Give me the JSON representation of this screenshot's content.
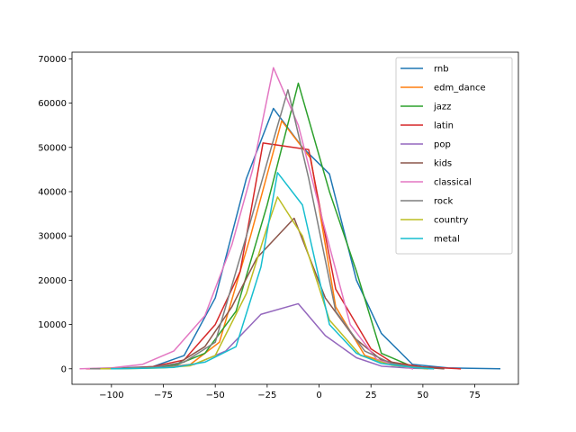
{
  "chart_data": {
    "type": "line",
    "title": "",
    "xlabel": "",
    "ylabel": "",
    "xlim": [
      -119,
      96
    ],
    "ylim": [
      -3500,
      71500
    ],
    "x_ticks": [
      -100,
      -75,
      -50,
      -25,
      0,
      25,
      50,
      75
    ],
    "x_tick_labels": [
      "−100",
      "−75",
      "−50",
      "−25",
      "0",
      "25",
      "50",
      "75"
    ],
    "y_ticks": [
      0,
      10000,
      20000,
      30000,
      40000,
      50000,
      60000,
      70000
    ],
    "y_tick_labels": [
      "0",
      "10000",
      "20000",
      "30000",
      "40000",
      "50000",
      "60000",
      "70000"
    ],
    "grid": false,
    "legend_position": "top-right",
    "series": [
      {
        "name": "rnb",
        "color": "#1f77b4",
        "x": [
          -110,
          -95,
          -80,
          -65,
          -50,
          -35,
          -22,
          -8,
          5,
          18,
          30,
          45,
          62,
          87
        ],
        "y": [
          0,
          200,
          500,
          3000,
          16000,
          43000,
          58800,
          50000,
          44000,
          20000,
          8000,
          1000,
          200,
          0
        ]
      },
      {
        "name": "edm_dance",
        "color": "#ff7f0e",
        "x": [
          -105,
          -90,
          -75,
          -62,
          -48,
          -33,
          -18,
          -4,
          8,
          22,
          35,
          52
        ],
        "y": [
          0,
          100,
          300,
          1000,
          6000,
          30000,
          56000,
          47500,
          14000,
          3000,
          1000,
          0
        ]
      },
      {
        "name": "jazz",
        "color": "#2ca02c",
        "x": [
          -108,
          -95,
          -80,
          -68,
          -55,
          -40,
          -25,
          -10,
          5,
          18,
          30,
          45,
          55
        ],
        "y": [
          0,
          100,
          200,
          1000,
          3500,
          13000,
          37000,
          64500,
          40000,
          22000,
          3500,
          500,
          0
        ]
      },
      {
        "name": "latin",
        "color": "#d62728",
        "x": [
          -112,
          -95,
          -80,
          -65,
          -50,
          -38,
          -27,
          -5,
          8,
          25,
          35,
          50,
          68
        ],
        "y": [
          0,
          100,
          500,
          2000,
          10000,
          22000,
          51000,
          49500,
          18000,
          4500,
          1500,
          400,
          0
        ]
      },
      {
        "name": "pop",
        "color": "#9467bd",
        "x": [
          -105,
          -90,
          -75,
          -60,
          -45,
          -28,
          -10,
          3,
          18,
          30,
          45,
          55
        ],
        "y": [
          0,
          100,
          300,
          1000,
          4000,
          12300,
          14700,
          7500,
          2500,
          600,
          100,
          0
        ]
      },
      {
        "name": "kids",
        "color": "#8c564b",
        "x": [
          -110,
          -95,
          -80,
          -68,
          -55,
          -42,
          -30,
          -12,
          3,
          17,
          30,
          45,
          60
        ],
        "y": [
          0,
          100,
          400,
          1200,
          5000,
          14000,
          25000,
          34000,
          16000,
          7000,
          2000,
          500,
          0
        ]
      },
      {
        "name": "classical",
        "color": "#e377c2",
        "x": [
          -115,
          -100,
          -85,
          -70,
          -55,
          -42,
          -32,
          -22,
          -10,
          2,
          15,
          28,
          45
        ],
        "y": [
          0,
          200,
          1000,
          4000,
          12000,
          28000,
          45000,
          68000,
          55000,
          33000,
          10000,
          2000,
          0
        ]
      },
      {
        "name": "rock",
        "color": "#7f7f7f",
        "x": [
          -110,
          -95,
          -80,
          -65,
          -50,
          -35,
          -23,
          -15,
          -5,
          8,
          22,
          35,
          52
        ],
        "y": [
          0,
          100,
          300,
          1500,
          6000,
          30000,
          50000,
          63000,
          43000,
          13000,
          4000,
          1200,
          0
        ]
      },
      {
        "name": "country",
        "color": "#bcbd22",
        "x": [
          -105,
          -90,
          -75,
          -62,
          -50,
          -35,
          -25,
          -20,
          -8,
          5,
          20,
          35,
          52
        ],
        "y": [
          0,
          50,
          200,
          700,
          3000,
          17000,
          32000,
          38800,
          30000,
          11000,
          3000,
          800,
          0
        ]
      },
      {
        "name": "metal",
        "color": "#17becf",
        "x": [
          -100,
          -85,
          -70,
          -55,
          -40,
          -28,
          -20,
          -8,
          5,
          18,
          30,
          45,
          55
        ],
        "y": [
          0,
          100,
          300,
          1500,
          5000,
          23000,
          44300,
          37000,
          10000,
          3500,
          1200,
          300,
          0
        ]
      }
    ]
  }
}
